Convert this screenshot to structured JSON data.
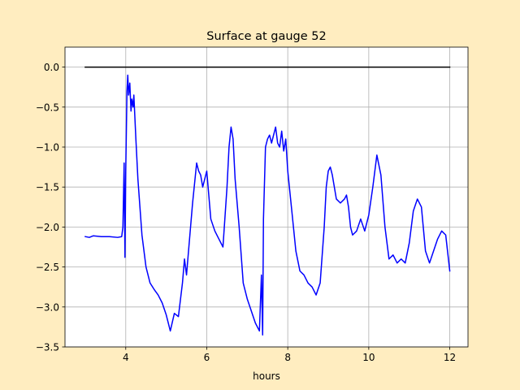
{
  "chart_data": {
    "type": "line",
    "title": "Surface at gauge 52",
    "xlabel": "hours",
    "ylabel": "",
    "xlim": [
      2.5,
      12.45
    ],
    "ylim": [
      -3.5,
      0.25
    ],
    "xticks": [
      4,
      6,
      8,
      10,
      12
    ],
    "xtick_labels": [
      "4",
      "6",
      "8",
      "10",
      "12"
    ],
    "yticks": [
      0.0,
      -0.5,
      -1.0,
      -1.5,
      -2.0,
      -2.5,
      -3.0,
      -3.5
    ],
    "ytick_labels": [
      "0.0",
      "−0.5",
      "−1.0",
      "−1.5",
      "−2.0",
      "−2.5",
      "−3.0",
      "−3.5"
    ],
    "grid": true,
    "series": [
      {
        "color": "#0000ff",
        "x": [
          3.0,
          3.1,
          3.2,
          3.4,
          3.6,
          3.8,
          3.9,
          3.93,
          3.96,
          3.98,
          4.0,
          4.03,
          4.05,
          4.07,
          4.1,
          4.13,
          4.15,
          4.18,
          4.2,
          4.25,
          4.3,
          4.35,
          4.4,
          4.5,
          4.6,
          4.7,
          4.8,
          4.9,
          5.0,
          5.1,
          5.2,
          5.3,
          5.4,
          5.45,
          5.5,
          5.55,
          5.6,
          5.65,
          5.7,
          5.75,
          5.8,
          5.85,
          5.9,
          5.95,
          6.0,
          6.1,
          6.2,
          6.3,
          6.4,
          6.5,
          6.55,
          6.6,
          6.65,
          6.7,
          6.8,
          6.9,
          7.0,
          7.1,
          7.2,
          7.3,
          7.35,
          7.38,
          7.4,
          7.45,
          7.5,
          7.55,
          7.6,
          7.65,
          7.7,
          7.75,
          7.8,
          7.85,
          7.9,
          7.95,
          8.0,
          8.1,
          8.2,
          8.3,
          8.4,
          8.5,
          8.6,
          8.7,
          8.8,
          8.9,
          8.95,
          9.0,
          9.05,
          9.1,
          9.2,
          9.3,
          9.4,
          9.45,
          9.5,
          9.55,
          9.6,
          9.7,
          9.8,
          9.9,
          10.0,
          10.1,
          10.2,
          10.3,
          10.4,
          10.5,
          10.6,
          10.7,
          10.8,
          10.9,
          11.0,
          11.1,
          11.2,
          11.3,
          11.4,
          11.5,
          11.6,
          11.7,
          11.8,
          11.9,
          12.0
        ],
        "y": [
          -2.12,
          -2.13,
          -2.11,
          -2.12,
          -2.12,
          -2.13,
          -2.12,
          -2.0,
          -1.2,
          -2.38,
          -1.3,
          -0.3,
          -0.1,
          -0.35,
          -0.2,
          -0.55,
          -0.4,
          -0.5,
          -0.35,
          -0.9,
          -1.4,
          -1.75,
          -2.1,
          -2.5,
          -2.7,
          -2.78,
          -2.85,
          -2.95,
          -3.1,
          -3.3,
          -3.08,
          -3.12,
          -2.7,
          -2.4,
          -2.6,
          -2.3,
          -2.0,
          -1.7,
          -1.45,
          -1.2,
          -1.3,
          -1.35,
          -1.5,
          -1.4,
          -1.3,
          -1.9,
          -2.05,
          -2.15,
          -2.25,
          -1.5,
          -1.0,
          -0.75,
          -0.9,
          -1.4,
          -2.0,
          -2.7,
          -2.9,
          -3.05,
          -3.2,
          -3.3,
          -2.6,
          -3.35,
          -1.9,
          -1.0,
          -0.9,
          -0.85,
          -0.95,
          -0.85,
          -0.75,
          -0.95,
          -1.0,
          -0.8,
          -1.05,
          -0.9,
          -1.3,
          -1.8,
          -2.3,
          -2.55,
          -2.6,
          -2.7,
          -2.75,
          -2.85,
          -2.7,
          -2.0,
          -1.5,
          -1.3,
          -1.25,
          -1.35,
          -1.65,
          -1.7,
          -1.65,
          -1.6,
          -1.75,
          -2.0,
          -2.1,
          -2.05,
          -1.9,
          -2.05,
          -1.85,
          -1.5,
          -1.1,
          -1.35,
          -2.0,
          -2.4,
          -2.35,
          -2.45,
          -2.4,
          -2.45,
          -2.2,
          -1.8,
          -1.65,
          -1.75,
          -2.3,
          -2.45,
          -2.3,
          -2.15,
          -2.05,
          -2.1,
          -2.55
        ]
      },
      {
        "color": "#000000",
        "x": [
          3.0,
          12.0
        ],
        "y": [
          0.0,
          0.0
        ]
      }
    ]
  }
}
